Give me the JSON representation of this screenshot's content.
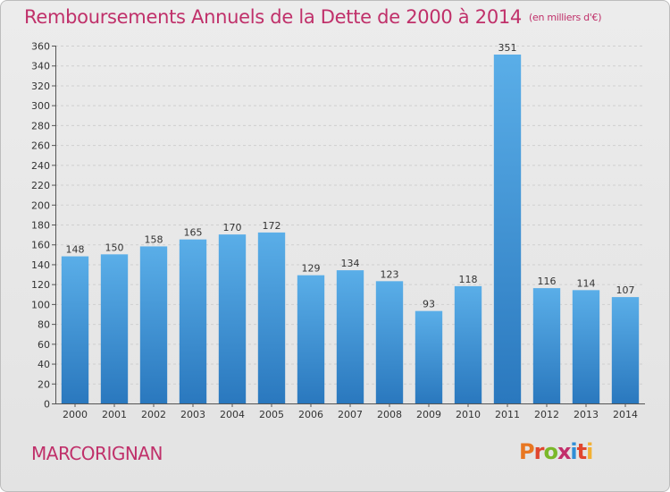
{
  "header": {
    "title": "Remboursements Annuels de la Dette de 2000 à 2014",
    "unit": "(en milliers d'€)"
  },
  "footer": {
    "commune": "MARCORIGNAN",
    "logo": "Proxiti"
  },
  "colors": {
    "title": "#c0306a",
    "bar_top": "#5aaee8",
    "bar_bottom": "#2a78be",
    "logo_letters": [
      "#e87722",
      "#e0462e",
      "#7ab829",
      "#c22f6b",
      "#2f8ed6",
      "#e0462e",
      "#f2b134"
    ]
  },
  "chart_data": {
    "type": "bar",
    "title": "Remboursements Annuels de la Dette de 2000 à 2014",
    "xlabel": "",
    "ylabel": "(en milliers d'€)",
    "ylim": [
      0,
      360
    ],
    "ytick_step": 20,
    "grid": true,
    "categories": [
      "2000",
      "2001",
      "2002",
      "2003",
      "2004",
      "2005",
      "2006",
      "2007",
      "2008",
      "2009",
      "2010",
      "2011",
      "2012",
      "2013",
      "2014"
    ],
    "values": [
      148,
      150,
      158,
      165,
      170,
      172,
      129,
      134,
      123,
      93,
      118,
      351,
      116,
      114,
      107
    ]
  }
}
